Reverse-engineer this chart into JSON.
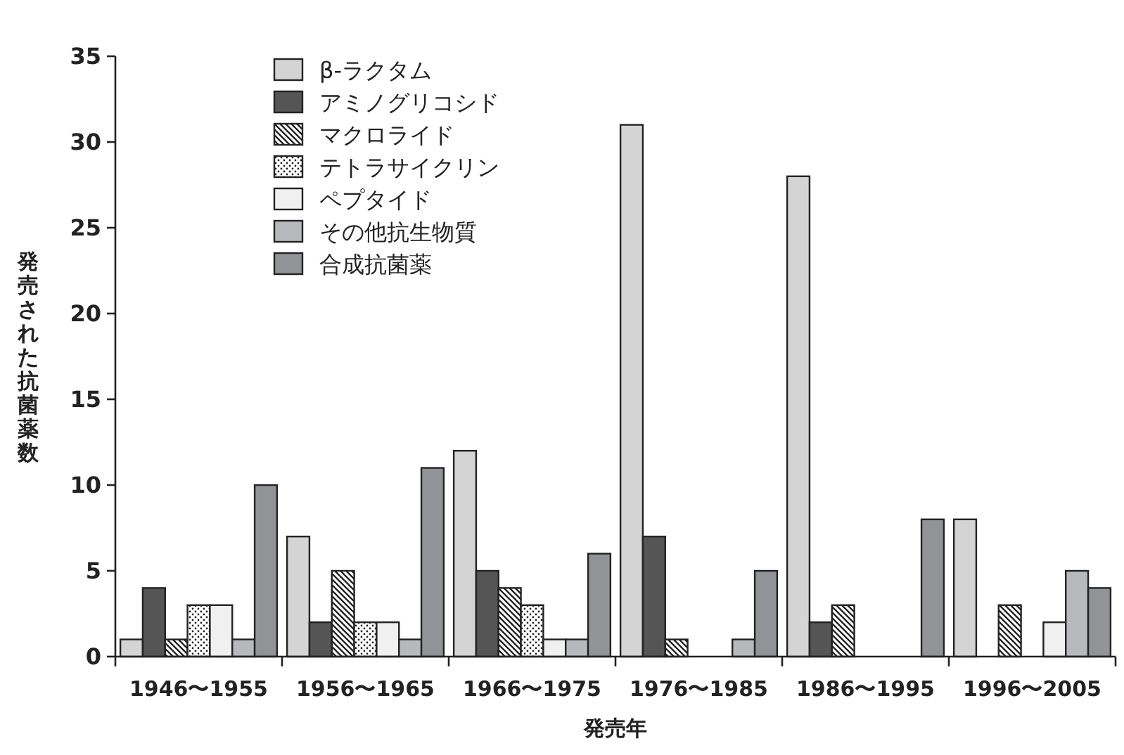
{
  "chart_data": {
    "type": "bar",
    "xlabel": "発売年",
    "ylabel": "発売された抗菌薬数",
    "categories": [
      "1946〜1955",
      "1956〜1965",
      "1966〜1975",
      "1976〜1985",
      "1986〜1995",
      "1996〜2005"
    ],
    "series": [
      {
        "name": "β-ラクタム",
        "color": "#d4d4d4",
        "values": [
          1,
          7,
          12,
          31,
          28,
          8
        ]
      },
      {
        "name": "アミノグリコシド",
        "color": "#555555",
        "values": [
          4,
          2,
          5,
          7,
          2,
          0
        ]
      },
      {
        "name": "マクロライド",
        "color": "#222222",
        "values": [
          1,
          5,
          4,
          1,
          3,
          3
        ]
      },
      {
        "name": "テトラサイクリン",
        "color": "#222222",
        "values": [
          3,
          2,
          3,
          0,
          0,
          0
        ]
      },
      {
        "name": "ペプタイド",
        "color": "#f0f0f0",
        "values": [
          3,
          2,
          1,
          0,
          0,
          2
        ]
      },
      {
        "name": "その他抗生物質",
        "color": "#b8b9bc",
        "values": [
          1,
          1,
          1,
          1,
          0,
          5
        ]
      },
      {
        "name": "合成抗菌薬",
        "color": "#929396",
        "values": [
          10,
          11,
          6,
          5,
          8,
          4
        ]
      }
    ],
    "ylim": [
      0,
      35
    ],
    "yticks": [
      0,
      5,
      10,
      15,
      20,
      25,
      30,
      35
    ],
    "legend": "top left",
    "grid": false
  }
}
